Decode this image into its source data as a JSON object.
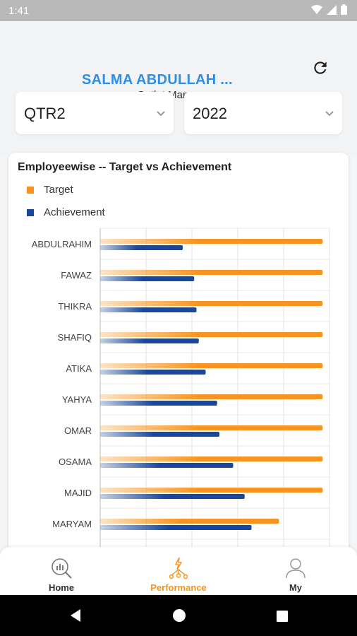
{
  "status": {
    "time": "1:41"
  },
  "header": {
    "user_name": "SALMA ABDULLAH ...",
    "user_role": "Outlet Manager",
    "refresh_icon": "refresh-icon"
  },
  "filters": {
    "quarter": "QTR2",
    "year": "2022"
  },
  "chart_data": {
    "type": "bar",
    "orientation": "horizontal",
    "title": "Employeewise -- Target vs Achievement",
    "legend_placement": "top-left",
    "grid": true,
    "categories": [
      "ABDULRAHIM",
      "FAWAZ",
      "THIKRA",
      "SHAFIQ",
      "ATIKA",
      "YAHYA",
      "OMAR",
      "OSAMA",
      "MAJID",
      "MARYAM"
    ],
    "series": [
      {
        "name": "Target",
        "color": "#f7931e",
        "values": [
          97,
          97,
          97,
          97,
          97,
          97,
          97,
          97,
          97,
          78
        ]
      },
      {
        "name": "Achievement",
        "color": "#17479e",
        "values": [
          36,
          41,
          42,
          43,
          46,
          51,
          52,
          58,
          63,
          66
        ]
      }
    ],
    "xlim": [
      0,
      100
    ]
  },
  "nav": {
    "items": [
      {
        "label": "Home",
        "icon": "search-chart-icon"
      },
      {
        "label": "Performance",
        "icon": "performance-icon"
      },
      {
        "label": "My",
        "icon": "user-icon"
      }
    ],
    "active_color": "#f7931e"
  }
}
